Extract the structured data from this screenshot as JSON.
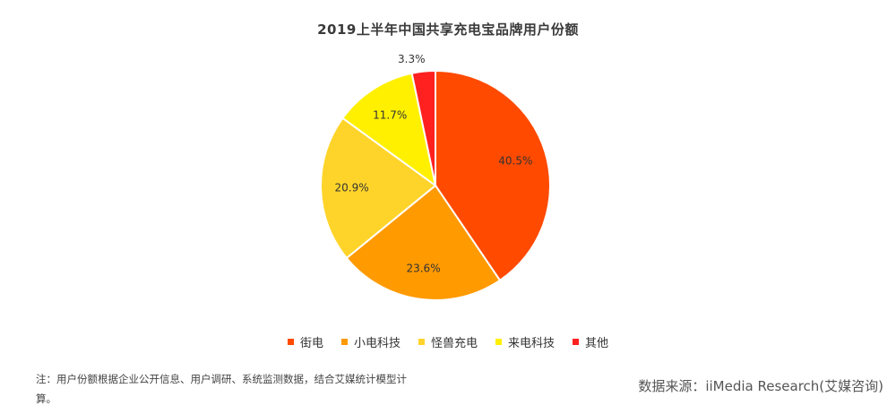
{
  "chart_data": {
    "type": "pie",
    "title": "2019上半年中国共享充电宝品牌用户份额",
    "categories": [
      "街电",
      "小电科技",
      "怪兽充电",
      "来电科技",
      "其他"
    ],
    "values": [
      40.5,
      23.6,
      20.9,
      11.7,
      3.3
    ],
    "labels": [
      "40.5%",
      "23.6%",
      "20.9%",
      "11.7%",
      "3.3%"
    ],
    "colors": [
      "#FF4A00",
      "#FF9A00",
      "#FFD42A",
      "#FFF000",
      "#FF2020"
    ],
    "legend_position": "bottom"
  },
  "footer": {
    "note": "注：用户份额根据企业公开信息、用户调研、系统监测数据，结合艾媒统计模型计算。",
    "source": "数据来源：iiMedia Research(艾媒咨询)"
  }
}
